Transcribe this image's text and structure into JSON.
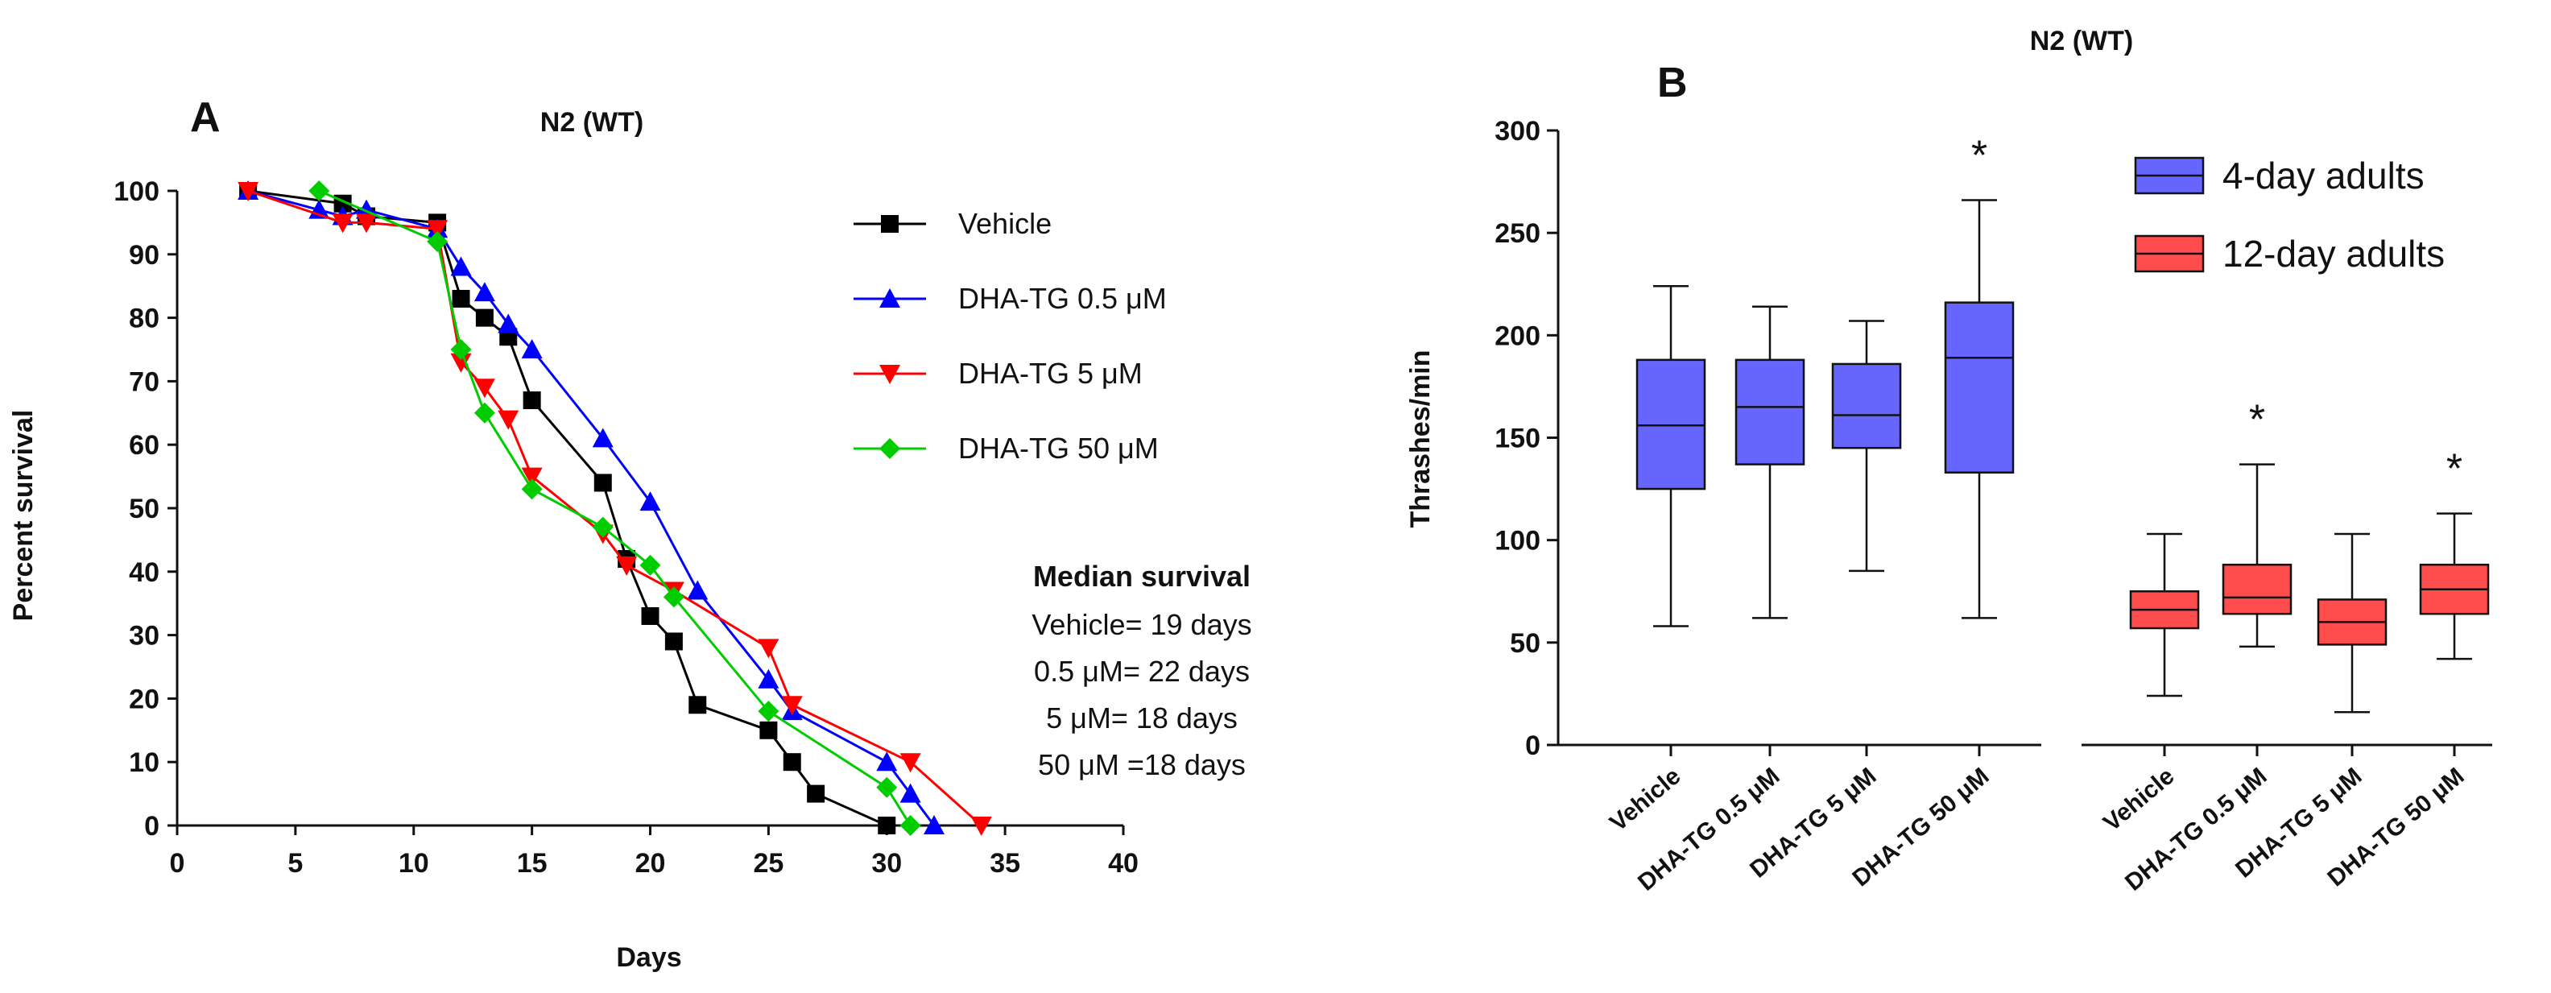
{
  "chart_data": [
    {
      "panel": "A",
      "type": "line",
      "title": "N2 (WT)",
      "xlabel": "Days",
      "ylabel": "Percent survival",
      "xlim": [
        0,
        40
      ],
      "ylim": [
        0,
        100
      ],
      "xticks": [
        0,
        5,
        10,
        15,
        20,
        25,
        30,
        35,
        40
      ],
      "yticks": [
        0,
        10,
        20,
        30,
        40,
        50,
        60,
        70,
        80,
        90,
        100
      ],
      "series": [
        {
          "name": "Vehicle",
          "color": "#000000",
          "marker": "square",
          "x": [
            3,
            7,
            8,
            11,
            12,
            13,
            14,
            15,
            18,
            19,
            20,
            21,
            22,
            25,
            26,
            27,
            30
          ],
          "y": [
            100,
            98,
            96,
            95,
            83,
            80,
            77,
            67,
            54,
            42,
            33,
            29,
            19,
            15,
            10,
            5,
            0
          ]
        },
        {
          "name": "DHA-TG 0.5 μM",
          "color": "#0000ff",
          "marker": "triangle-up",
          "x": [
            3,
            6,
            7,
            8,
            11,
            12,
            13,
            14,
            15,
            18,
            20,
            22,
            25,
            26,
            30,
            31,
            32
          ],
          "y": [
            100,
            97,
            96,
            97,
            94,
            88,
            84,
            79,
            75,
            61,
            51,
            37,
            23,
            18,
            10,
            5,
            0
          ]
        },
        {
          "name": "DHA-TG 5 μM",
          "color": "#ff0000",
          "marker": "triangle-down",
          "x": [
            3,
            7,
            8,
            11,
            12,
            13,
            14,
            15,
            18,
            19,
            21,
            25,
            26,
            31,
            34
          ],
          "y": [
            100,
            95,
            95,
            94,
            73,
            69,
            64,
            55,
            46,
            41,
            37,
            28,
            19,
            10,
            0
          ]
        },
        {
          "name": "DHA-TG 50 μM",
          "color": "#00cc00",
          "marker": "diamond",
          "x": [
            6,
            11,
            12,
            13,
            15,
            18,
            20,
            21,
            25,
            30,
            31
          ],
          "y": [
            100,
            92,
            75,
            65,
            53,
            47,
            41,
            36,
            18,
            6,
            0
          ]
        }
      ],
      "annotation": {
        "heading": "Median survival",
        "lines": [
          "Vehicle= 19 days",
          "0.5 μM= 22 days",
          "5 μM= 18 days",
          "50 μM =18 days"
        ]
      }
    },
    {
      "panel": "B",
      "type": "box",
      "title": "N2 (WT)",
      "xlabel": "",
      "ylabel": "Thrashes/min",
      "ylim": [
        0,
        300
      ],
      "yticks": [
        0,
        50,
        100,
        150,
        200,
        250,
        300
      ],
      "categories": [
        "Vehicle",
        "DHA-TG 0.5 μM",
        "DHA-TG 5 μM",
        "DHA-TG 50 μM",
        "Vehicle",
        "DHA-TG 0.5 μM",
        "DHA-TG 5 μM",
        "DHA-TG 50 μM"
      ],
      "groups": [
        {
          "name": "4-day adults",
          "color": "#6666ff",
          "boxes": [
            {
              "category": "Vehicle",
              "min": 58,
              "q1": 125,
              "median": 156,
              "q3": 188,
              "max": 224,
              "significant": false
            },
            {
              "category": "DHA-TG 0.5 μM",
              "min": 62,
              "q1": 137,
              "median": 165,
              "q3": 188,
              "max": 214,
              "significant": false
            },
            {
              "category": "DHA-TG 5 μM",
              "min": 85,
              "q1": 145,
              "median": 161,
              "q3": 186,
              "max": 207,
              "significant": false
            },
            {
              "category": "DHA-TG 50 μM",
              "min": 62,
              "q1": 133,
              "median": 189,
              "q3": 216,
              "max": 266,
              "significant": true
            }
          ]
        },
        {
          "name": "12-day adults",
          "color": "#ff4d4d",
          "boxes": [
            {
              "category": "Vehicle",
              "min": 24,
              "q1": 57,
              "median": 66,
              "q3": 75,
              "max": 103,
              "significant": false
            },
            {
              "category": "DHA-TG 0.5 μM",
              "min": 48,
              "q1": 64,
              "median": 72,
              "q3": 88,
              "max": 137,
              "significant": true
            },
            {
              "category": "DHA-TG 5 μM",
              "min": 16,
              "q1": 49,
              "median": 60,
              "q3": 71,
              "max": 103,
              "significant": false
            },
            {
              "category": "DHA-TG 50 μM",
              "min": 42,
              "q1": 64,
              "median": 76,
              "q3": 88,
              "max": 113,
              "significant": true
            }
          ]
        }
      ],
      "significance_marker": "*"
    }
  ]
}
